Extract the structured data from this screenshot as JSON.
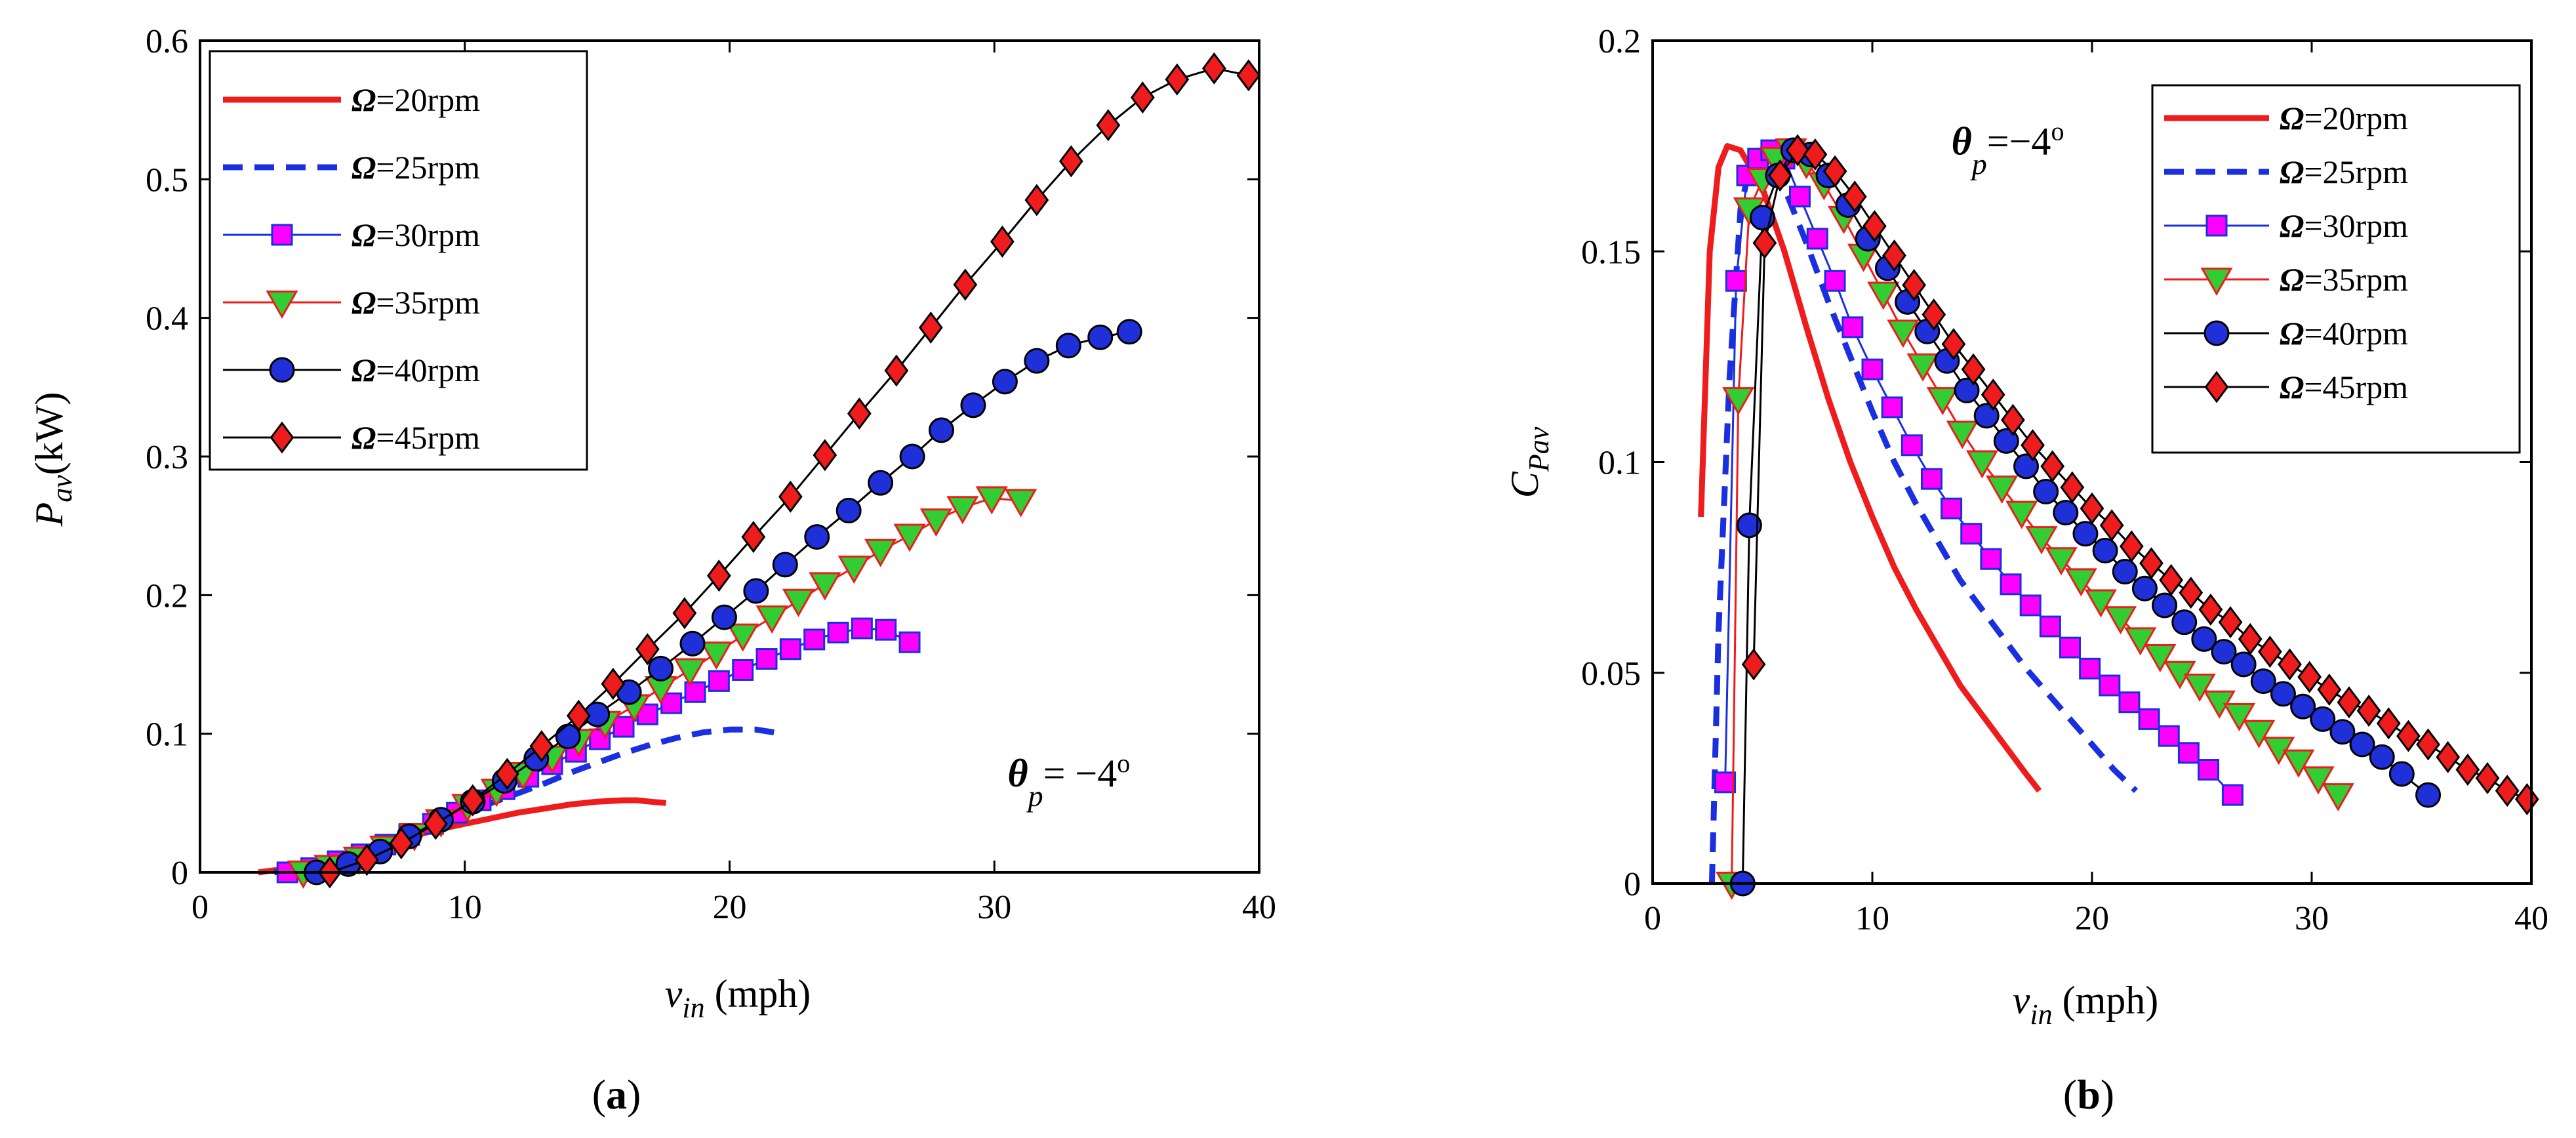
{
  "colors": {
    "red": "#ee1c1c",
    "blue": "#1a2fe0",
    "magenta": "#ff00ff",
    "green": "#32cd32",
    "navy": "#1f30d9",
    "black": "#000000"
  },
  "chart_data": [
    {
      "type": "line",
      "panel_label": "a",
      "ylabel_main": "P",
      "ylabel_sub": "av",
      "ylabel_unit": "(kW)",
      "xlabel_main": "v",
      "xlabel_sub": "in",
      "xlabel_unit": " (mph)",
      "xlim": [
        0,
        40
      ],
      "ylim": [
        0,
        0.6
      ],
      "xticks": [
        0,
        10,
        20,
        30,
        40
      ],
      "yticks": [
        0,
        0.1,
        0.2,
        0.3,
        0.4,
        0.5,
        0.6
      ],
      "annotation": {
        "sym": "θ",
        "sub": "p",
        "text": "= −4",
        "sup": "o",
        "at": [
          30.5,
          0.062
        ]
      },
      "legend_position": "top-left",
      "series": [
        {
          "name": "=20rpm",
          "omega": "Ω",
          "style": "solid",
          "color": "#ee1c1c",
          "marker": "none",
          "x": [
            2.2,
            3,
            4,
            5,
            6,
            7,
            8,
            9,
            10,
            11,
            12,
            13,
            14,
            15,
            16,
            16.5,
            17,
            17.6
          ],
          "y": [
            0,
            0.002,
            0.006,
            0.011,
            0.016,
            0.021,
            0.026,
            0.031,
            0.035,
            0.039,
            0.043,
            0.046,
            0.049,
            0.051,
            0.052,
            0.052,
            0.051,
            0.05
          ]
        },
        {
          "name": "=25rpm",
          "omega": "Ω",
          "style": "dashed",
          "color": "#1a2fe0",
          "marker": "none",
          "x": [
            2.8,
            4,
            5,
            6,
            7,
            8,
            9,
            10,
            11,
            12,
            13,
            14,
            15,
            16,
            17,
            18,
            19,
            20,
            21,
            22
          ],
          "y": [
            0,
            0.004,
            0.009,
            0.015,
            0.022,
            0.029,
            0.036,
            0.043,
            0.05,
            0.057,
            0.064,
            0.072,
            0.079,
            0.086,
            0.092,
            0.097,
            0.101,
            0.103,
            0.103,
            0.1
          ]
        },
        {
          "name": "=30rpm",
          "omega": "Ω",
          "style": "solid",
          "color": "#1a2fe0",
          "marker": "square",
          "markerFill": "#ff00ff",
          "markerStroke": "#1a2fe0",
          "x": [
            3.3,
            4.2,
            5.2,
            6.1,
            7,
            7.9,
            8.8,
            9.7,
            10.6,
            11.5,
            12.4,
            13.3,
            14.2,
            15.1,
            16,
            16.9,
            17.8,
            18.7,
            19.6,
            20.5,
            21.4,
            22.3,
            23.2,
            24.1,
            25,
            25.9,
            26.8
          ],
          "y": [
            0,
            0.003,
            0.008,
            0.013,
            0.02,
            0.027,
            0.035,
            0.043,
            0.052,
            0.06,
            0.069,
            0.078,
            0.087,
            0.096,
            0.105,
            0.114,
            0.122,
            0.13,
            0.138,
            0.146,
            0.154,
            0.161,
            0.168,
            0.173,
            0.176,
            0.175,
            0.166
          ]
        },
        {
          "name": "=35rpm",
          "omega": "Ω",
          "style": "solid",
          "color": "#ee1c1c",
          "marker": "triangle",
          "markerFill": "#32cd32",
          "markerStroke": "#ee1c1c",
          "x": [
            3.9,
            4.9,
            6,
            7,
            8.1,
            9.1,
            10.1,
            11.2,
            12.2,
            13.3,
            14.3,
            15.3,
            16.4,
            17.4,
            18.5,
            19.5,
            20.5,
            21.6,
            22.6,
            23.6,
            24.7,
            25.7,
            26.8,
            27.8,
            28.8,
            29.9,
            31
          ],
          "y": [
            0,
            0.004,
            0.01,
            0.018,
            0.027,
            0.037,
            0.048,
            0.059,
            0.071,
            0.083,
            0.095,
            0.108,
            0.12,
            0.133,
            0.146,
            0.158,
            0.171,
            0.184,
            0.196,
            0.208,
            0.22,
            0.232,
            0.243,
            0.254,
            0.263,
            0.27,
            0.268
          ]
        },
        {
          "name": "=40rpm",
          "omega": "Ω",
          "style": "solid",
          "color": "#000000",
          "marker": "circle",
          "markerFill": "#1f30d9",
          "markerStroke": "#000000",
          "x": [
            4.4,
            5.6,
            6.8,
            7.9,
            9.1,
            10.3,
            11.5,
            12.7,
            13.9,
            15,
            16.2,
            17.4,
            18.6,
            19.8,
            21,
            22.1,
            23.3,
            24.5,
            25.7,
            26.9,
            28,
            29.2,
            30.4,
            31.6,
            32.8,
            34,
            35.1
          ],
          "y": [
            0,
            0.006,
            0.015,
            0.026,
            0.038,
            0.051,
            0.066,
            0.082,
            0.098,
            0.114,
            0.13,
            0.147,
            0.165,
            0.184,
            0.203,
            0.222,
            0.242,
            0.261,
            0.281,
            0.3,
            0.319,
            0.337,
            0.354,
            0.369,
            0.38,
            0.386,
            0.39
          ]
        },
        {
          "name": "=45rpm",
          "omega": "Ω",
          "style": "solid",
          "color": "#000000",
          "marker": "diamond",
          "markerFill": "#ee1c1c",
          "markerStroke": "#000000",
          "x": [
            4.9,
            6.3,
            7.6,
            8.9,
            10.3,
            11.6,
            12.9,
            14.3,
            15.6,
            16.9,
            18.3,
            19.6,
            20.9,
            22.3,
            23.6,
            24.9,
            26.3,
            27.6,
            28.9,
            30.3,
            31.6,
            32.9,
            34.3,
            35.6,
            36.9,
            38.3,
            39.6
          ],
          "y": [
            0,
            0.009,
            0.021,
            0.035,
            0.052,
            0.071,
            0.091,
            0.113,
            0.136,
            0.161,
            0.187,
            0.214,
            0.242,
            0.271,
            0.301,
            0.331,
            0.362,
            0.393,
            0.424,
            0.455,
            0.485,
            0.513,
            0.539,
            0.559,
            0.572,
            0.58,
            0.575
          ]
        }
      ]
    },
    {
      "type": "line",
      "panel_label": "b",
      "ylabel_main": "C",
      "ylabel_sub": "Pav",
      "xlabel_main": "v",
      "xlabel_sub": "in",
      "xlabel_unit": " (mph)",
      "xlim": [
        0,
        40
      ],
      "ylim": [
        0,
        0.2
      ],
      "xticks": [
        0,
        10,
        20,
        30,
        40
      ],
      "yticks": [
        0,
        0.05,
        0.1,
        0.15,
        0.2
      ],
      "annotation": {
        "sym": "θ",
        "sub": "p",
        "text": "=−4",
        "sup": "o",
        "at": [
          13.6,
          0.173
        ]
      },
      "legend_position": "top-right",
      "series": [
        {
          "name": "=20rpm",
          "omega": "Ω",
          "style": "solid",
          "color": "#ee1c1c",
          "marker": "none",
          "x": [
            2.2,
            2.6,
            3,
            3.4,
            4,
            5,
            6,
            7,
            8,
            9,
            10,
            11,
            12,
            13,
            14,
            15,
            16,
            17,
            17.6
          ],
          "y": [
            0.087,
            0.15,
            0.17,
            0.175,
            0.174,
            0.165,
            0.15,
            0.132,
            0.115,
            0.1,
            0.087,
            0.075,
            0.065,
            0.056,
            0.047,
            0.04,
            0.033,
            0.026,
            0.022
          ]
        },
        {
          "name": "=25rpm",
          "omega": "Ω",
          "style": "dashed",
          "color": "#1a2fe0",
          "marker": "none",
          "x": [
            2.7,
            3,
            3.5,
            4,
            4.5,
            5,
            6,
            7,
            8,
            9,
            10,
            11,
            12,
            13,
            14,
            15,
            16,
            17,
            18,
            19,
            20,
            21,
            22
          ],
          "y": [
            0,
            0.06,
            0.12,
            0.16,
            0.172,
            0.173,
            0.165,
            0.152,
            0.138,
            0.125,
            0.112,
            0.1,
            0.09,
            0.081,
            0.072,
            0.065,
            0.058,
            0.051,
            0.045,
            0.039,
            0.033,
            0.027,
            0.022
          ]
        },
        {
          "name": "=30rpm",
          "omega": "Ω",
          "style": "solid",
          "color": "#1a2fe0",
          "marker": "square",
          "markerFill": "#ff00ff",
          "markerStroke": "#1a2fe0",
          "x": [
            3.3,
            3.8,
            4.3,
            4.8,
            5.4,
            6,
            6.7,
            7.5,
            8.3,
            9.1,
            10,
            10.9,
            11.8,
            12.7,
            13.6,
            14.5,
            15.4,
            16.3,
            17.2,
            18.1,
            19,
            19.9,
            20.8,
            21.7,
            22.6,
            23.5,
            24.4,
            25.3,
            26.4
          ],
          "y": [
            0.024,
            0.143,
            0.168,
            0.172,
            0.174,
            0.172,
            0.163,
            0.153,
            0.143,
            0.132,
            0.122,
            0.113,
            0.104,
            0.096,
            0.089,
            0.083,
            0.077,
            0.071,
            0.066,
            0.061,
            0.056,
            0.051,
            0.047,
            0.043,
            0.039,
            0.035,
            0.031,
            0.027,
            0.021
          ]
        },
        {
          "name": "=35rpm",
          "omega": "Ω",
          "style": "solid",
          "color": "#ee1c1c",
          "marker": "triangle",
          "markerFill": "#32cd32",
          "markerStroke": "#ee1c1c",
          "x": [
            3.6,
            3.9,
            4.4,
            5,
            5.6,
            6.3,
            7,
            7.8,
            8.7,
            9.6,
            10.5,
            11.4,
            12.3,
            13.2,
            14.1,
            15,
            15.9,
            16.8,
            17.7,
            18.6,
            19.5,
            20.4,
            21.3,
            22.2,
            23.1,
            24,
            24.9,
            25.8,
            26.7,
            27.6,
            28.5,
            29.4,
            30.3,
            31.2
          ],
          "y": [
            0,
            0.115,
            0.16,
            0.167,
            0.172,
            0.174,
            0.171,
            0.166,
            0.158,
            0.149,
            0.14,
            0.131,
            0.123,
            0.115,
            0.107,
            0.1,
            0.094,
            0.088,
            0.082,
            0.077,
            0.072,
            0.067,
            0.063,
            0.058,
            0.054,
            0.05,
            0.047,
            0.043,
            0.04,
            0.036,
            0.032,
            0.029,
            0.025,
            0.021
          ]
        },
        {
          "name": "=40rpm",
          "omega": "Ω",
          "style": "solid",
          "color": "#000000",
          "marker": "circle",
          "markerFill": "#1f30d9",
          "markerStroke": "#000000",
          "x": [
            4.1,
            4.4,
            5,
            5.7,
            6.4,
            7.2,
            8,
            8.9,
            9.8,
            10.7,
            11.6,
            12.5,
            13.4,
            14.3,
            15.2,
            16.1,
            17,
            17.9,
            18.8,
            19.7,
            20.6,
            21.5,
            22.4,
            23.3,
            24.2,
            25.1,
            26,
            26.9,
            27.8,
            28.7,
            29.6,
            30.5,
            31.4,
            32.3,
            33.2,
            34.1,
            35.3
          ],
          "y": [
            0,
            0.085,
            0.158,
            0.168,
            0.174,
            0.173,
            0.168,
            0.161,
            0.153,
            0.146,
            0.138,
            0.131,
            0.124,
            0.117,
            0.111,
            0.105,
            0.099,
            0.093,
            0.088,
            0.083,
            0.079,
            0.074,
            0.07,
            0.066,
            0.062,
            0.058,
            0.055,
            0.052,
            0.048,
            0.045,
            0.042,
            0.039,
            0.036,
            0.033,
            0.03,
            0.026,
            0.021
          ]
        },
        {
          "name": "=45rpm",
          "omega": "Ω",
          "style": "solid",
          "color": "#000000",
          "marker": "diamond",
          "markerFill": "#ee1c1c",
          "markerStroke": "#000000",
          "x": [
            4.6,
            5.1,
            5.8,
            6.6,
            7.4,
            8.3,
            9.2,
            10.1,
            11,
            11.9,
            12.8,
            13.7,
            14.6,
            15.5,
            16.4,
            17.3,
            18.2,
            19.1,
            20,
            20.9,
            21.8,
            22.7,
            23.6,
            24.5,
            25.4,
            26.3,
            27.2,
            28.1,
            29,
            29.9,
            30.8,
            31.7,
            32.6,
            33.5,
            34.4,
            35.3,
            36.2,
            37.1,
            38,
            38.9,
            39.8
          ],
          "y": [
            0.052,
            0.152,
            0.168,
            0.174,
            0.173,
            0.169,
            0.163,
            0.156,
            0.149,
            0.142,
            0.135,
            0.128,
            0.122,
            0.116,
            0.11,
            0.104,
            0.099,
            0.094,
            0.089,
            0.085,
            0.08,
            0.076,
            0.072,
            0.069,
            0.065,
            0.062,
            0.058,
            0.055,
            0.052,
            0.049,
            0.046,
            0.043,
            0.041,
            0.038,
            0.035,
            0.033,
            0.03,
            0.027,
            0.025,
            0.022,
            0.02
          ]
        }
      ]
    }
  ]
}
